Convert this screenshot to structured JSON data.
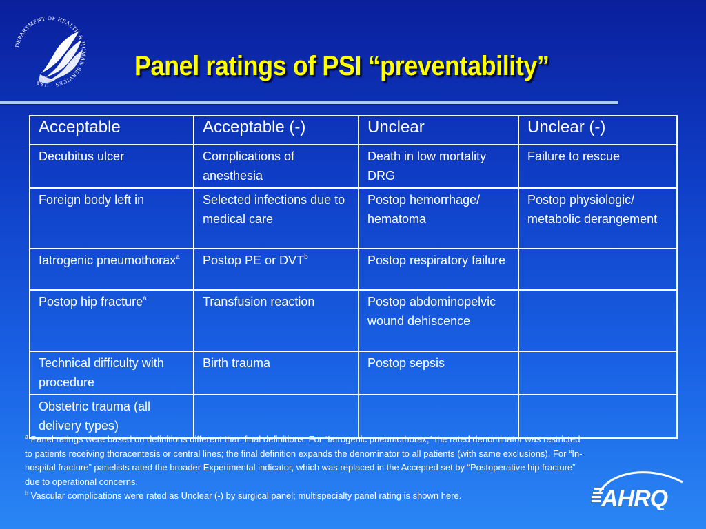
{
  "slide": {
    "title": "Panel ratings of PSI “preventability”"
  },
  "logos": {
    "hhs": {
      "icon": "hhs-eagle-seal-icon",
      "ring_text": "DEPARTMENT OF HEALTH & HUMAN SERVICES · USA"
    },
    "ahrq": {
      "icon": "ahrq-logo-icon",
      "text": "AHRQ"
    }
  },
  "table": {
    "headers": [
      "Acceptable",
      "Acceptable (-)",
      "Unclear",
      "Unclear (-)"
    ],
    "rows": [
      [
        {
          "text": "Decubitus ulcer"
        },
        {
          "text": "Complications of anesthesia"
        },
        {
          "text": "Death in low mortality DRG"
        },
        {
          "text": "Failure to rescue"
        }
      ],
      [
        {
          "text": "Foreign body left in"
        },
        {
          "text": "Selected infections due to medical care"
        },
        {
          "text": "Postop hemorrhage/ hematoma"
        },
        {
          "text": "Postop physiologic/ metabolic derangement"
        }
      ],
      [
        {
          "text": "Iatrogenic pneumothorax",
          "sup": "a"
        },
        {
          "text": "Postop PE or DVT",
          "sup": "b"
        },
        {
          "text": "Postop respiratory failure"
        },
        {
          "text": ""
        }
      ],
      [
        {
          "text": "Postop hip fracture",
          "sup": "a"
        },
        {
          "text": "Transfusion reaction"
        },
        {
          "text": "Postop abdominopelvic wound dehiscence"
        },
        {
          "text": ""
        }
      ],
      [
        {
          "text": "Technical difficulty with procedure"
        },
        {
          "text": "Birth trauma"
        },
        {
          "text": "Postop sepsis"
        },
        {
          "text": ""
        }
      ],
      [
        {
          "text": "Obstetric trauma (all delivery types)"
        },
        {
          "text": ""
        },
        {
          "text": ""
        },
        {
          "text": ""
        }
      ]
    ]
  },
  "footnotes": {
    "a_marker": "a",
    "a_text": "Panel ratings were based on definitions different than final definitions. For “Iatrogenic pneumothorax,” the rated denominator was restricted to patients receiving thoracentesis or central lines; the final definition expands the denominator to all patients (with same exclusions). For “In-hospital fracture” panelists rated the broader Experimental indicator, which was replaced in the Accepted set by “Postoperative hip fracture” due to operational concerns.",
    "b_marker": "b",
    "b_text": "Vascular complications were rated as Unclear (-) by surgical panel; multispecialty panel rating is shown here."
  }
}
